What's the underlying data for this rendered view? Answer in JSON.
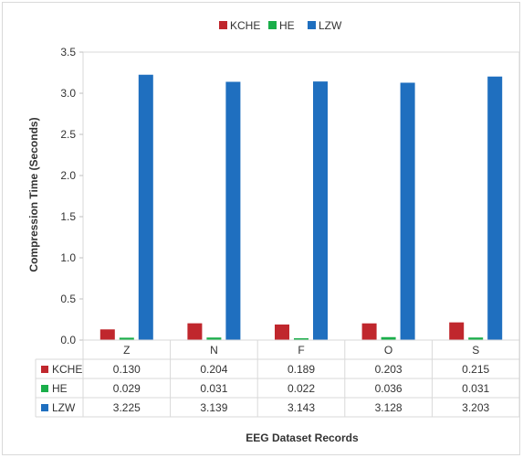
{
  "chart_data": {
    "type": "bar",
    "title": "",
    "ylabel": "Compression Time (Seconds)",
    "xlabel": "EEG Dataset Records",
    "ylim": [
      0,
      3.5
    ],
    "yticks": [
      0.0,
      0.5,
      1.0,
      1.5,
      2.0,
      2.5,
      3.0,
      3.5
    ],
    "categories": [
      "Z",
      "N",
      "F",
      "O",
      "S"
    ],
    "legend_position": "top-center",
    "grid": false,
    "series": [
      {
        "name": "KCHE",
        "color": "#c0272d",
        "values": [
          0.13,
          0.204,
          0.189,
          0.203,
          0.215
        ],
        "labels": [
          "0.130",
          "0.204",
          "0.189",
          "0.203",
          "0.215"
        ]
      },
      {
        "name": "HE",
        "color": "#1aae4a",
        "values": [
          0.029,
          0.031,
          0.022,
          0.036,
          0.031
        ],
        "labels": [
          "0.029",
          "0.031",
          "0.022",
          "0.036",
          "0.031"
        ]
      },
      {
        "name": "LZW",
        "color": "#1f6fbf",
        "values": [
          3.225,
          3.139,
          3.143,
          3.128,
          3.203
        ],
        "labels": [
          "3.225",
          "3.139",
          "3.143",
          "3.128",
          "3.203"
        ]
      }
    ]
  }
}
